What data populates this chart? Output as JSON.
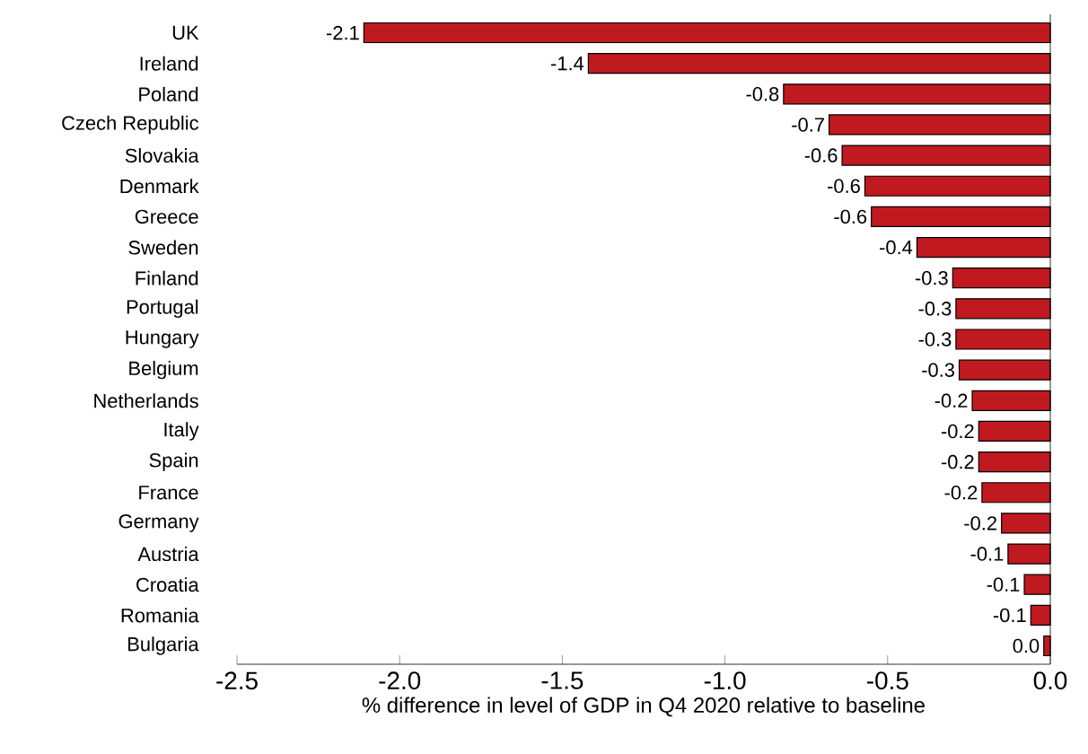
{
  "chart_data": {
    "type": "bar",
    "orientation": "horizontal",
    "xlabel": "% difference in level of GDP in Q4 2020 relative to baseline",
    "categories": [
      "UK",
      "Ireland",
      "Poland",
      "Czech Republic",
      "Slovakia",
      "Denmark",
      "Greece",
      "Sweden",
      "Finland",
      "Portugal",
      "Hungary",
      "Belgium",
      "Netherlands",
      "Italy",
      "Spain",
      "France",
      "Germany",
      "Austria",
      "Croatia",
      "Romania",
      "Bulgaria"
    ],
    "values": [
      -2.11,
      -1.42,
      -0.82,
      -0.68,
      -0.64,
      -0.57,
      -0.55,
      -0.41,
      -0.3,
      -0.29,
      -0.29,
      -0.28,
      -0.24,
      -0.22,
      -0.22,
      -0.21,
      -0.15,
      -0.13,
      -0.08,
      -0.06,
      -0.02
    ],
    "value_labels": [
      "-2.1",
      "-1.4",
      "-0.8",
      "-0.7",
      "-0.6",
      "-0.6",
      "-0.6",
      "-0.4",
      "-0.3",
      "-0.3",
      "-0.3",
      "-0.3",
      "-0.2",
      "-0.2",
      "-0.2",
      "-0.2",
      "-0.2",
      "-0.1",
      "-0.1",
      "-0.1",
      "0.0"
    ],
    "color": "#c0191f",
    "xlim": [
      -2.5,
      0
    ],
    "xticks": [
      {
        "value": -2.5,
        "label": "-2.5"
      },
      {
        "value": -2.0,
        "label": "-2.0"
      },
      {
        "value": -1.5,
        "label": "-1.5"
      },
      {
        "value": -1.0,
        "label": "-1.0"
      },
      {
        "value": -0.5,
        "label": "-0.5"
      },
      {
        "value": 0,
        "label": "0.0"
      }
    ]
  }
}
